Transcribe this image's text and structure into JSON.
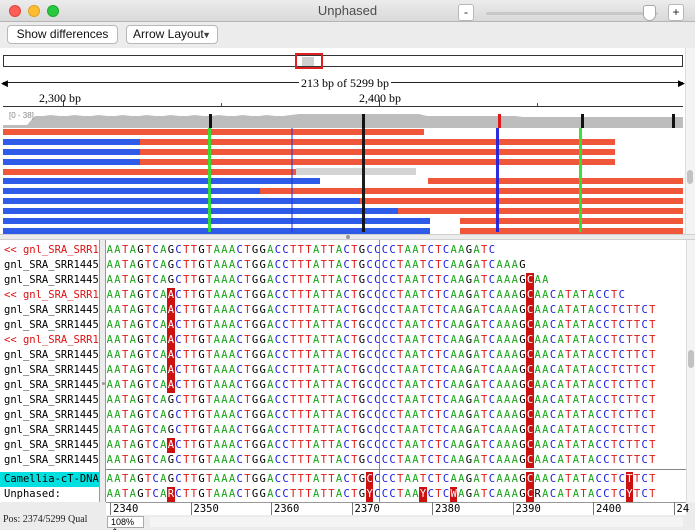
{
  "window": {
    "title": "Unphased"
  },
  "toolbar": {
    "show_differences_label": "Show differences",
    "layout_select_value": "Arrow Layout",
    "zoom_out_label": "-",
    "zoom_in_label": "+",
    "zoom_slider_level": 0.95
  },
  "overview": {
    "span_label": "213 bp of 5299 bp",
    "ruler_ticks": [
      "2,300 bp",
      "2,400 bp"
    ],
    "coverage_range": "[0 - 38]"
  },
  "reads_panel": {
    "read_colors": {
      "forward": "#f0573a",
      "reverse": "#2e5be8",
      "mismatch_a": "#33dd33",
      "mismatch_g": "#111111",
      "mismatch_t": "#e01818",
      "mismatch_c": "#2222dd",
      "coverage": "#bdbdbd"
    }
  },
  "sequences": {
    "names": [
      "<< gnl_SRA_SRR1",
      "gnl_SRA_SRR1445",
      "gnl_SRA_SRR1445",
      "<< gnl_SRA_SRR1",
      "gnl_SRA_SRR1445",
      "gnl_SRA_SRR1445",
      "<< gnl_SRA_SRR1",
      "gnl_SRA_SRR1445",
      "gnl_SRA_SRR1445",
      "gnl_SRA_SRR1445",
      "gnl_SRA_SRR1445",
      "gnl_SRA_SRR1445",
      "gnl_SRA_SRR1445",
      "gnl_SRA_SRR1445",
      "gnl_SRA_SRR1445",
      "Camellia-cT-DNA",
      "Unphased:"
    ],
    "rows": [
      "AATAGTCAGCTTGTAAACTGGACCTTTATTACTGCCCCTAATCTCAAGATC",
      "AATAGTCAGCTTGTAAACTGGACCTTTATTACTGCCCCTAATCTCAAGATCAAAG",
      "AATAGTCAGCTTGTAAACTGGACCTTTATTACTGCCCCTAATCTCAAGATCAAAGCAA",
      "AATAGTCAACTTGTAAACTGGACCTTTATTACTGCCCCTAATCTCAAGATCAAAGCAACATATACCTC",
      "AATAGTCAACTTGTAAACTGGACCTTTATTACTGCCCCTAATCTCAAGATCAAAGCAACATATACCTCTTCT",
      "AATAGTCAACTTGTAAACTGGACCTTTATTACTGCCCCTAATCTCAAGATCAAAGCAACATATACCTCTTCT",
      "AATAGTCAACTTGTAAACTGGACCTTTATTACTGCCCCTAATCTCAAGATCAAAGCAACATATACCTCTTCT",
      "AATAGTCAACTTGTAAACTGGACCTTTATTACTGCCCCTAATCTCAAGATCAAAGCAACATATACCTCTTCT",
      "AATAGTCAACTTGTAAACTGGACCTTTATTACTGCCCCTAATCTCAAGATCAAAGCAACATATACCTCTTCT",
      "AATAGTCAACTTGTAAACTGGACCTTTATTACTGCCCCTAATCTCAAGATCAAAGCAACATATACCTCTTCT",
      "AATAGTCAGCTTGTAAACTGGACCTTTATTACTGCCCCTAATCTCAAGATCAAAGCAACATATACCTCTTCT",
      "AATAGTCAGCTTGTAAACTGGACCTTTATTACTGCCCCTAATCTCAAGATCAAAGCAACATATACCTCTTCT",
      "AATAGTCAGCTTGTAAACTGGACCTTTATTACTGCCCCTAATCTCAAGATCAAAGCAACATATACCTCTTCT",
      "AATAGTCAACTTGTAAACTGGACCTTTATTACTGCCCCTAATCTCAAGATCAAAGCAACATATACCTCTTCT",
      "AATAGTCAGCTTGTAAACTGGACCTTTATTACTGCCCCTAATCTCAAGATCAAAGCAACATATACCTCTTCT",
      "AATAGTCAGCTTGTAAACTGGACCTTTATTACTGCCCCTAATCTCAAGATCAAAGCAACATATACCTCTTCT",
      "AATAGTCARCTTGTAAACTGGACCTTTATTACTGYCCCTAAYCTCWAGATCAAAGCRACATATACCTCYTCT"
    ],
    "highlight_columns": [
      8,
      34,
      41,
      45,
      55,
      68
    ]
  },
  "bottom": {
    "position_label": "Pos: 2374/5299  Qual",
    "zoom_value": "108%",
    "ruler_labels": [
      "2340",
      "2350",
      "2360",
      "2370",
      "2380",
      "2390",
      "2400",
      "24"
    ]
  }
}
